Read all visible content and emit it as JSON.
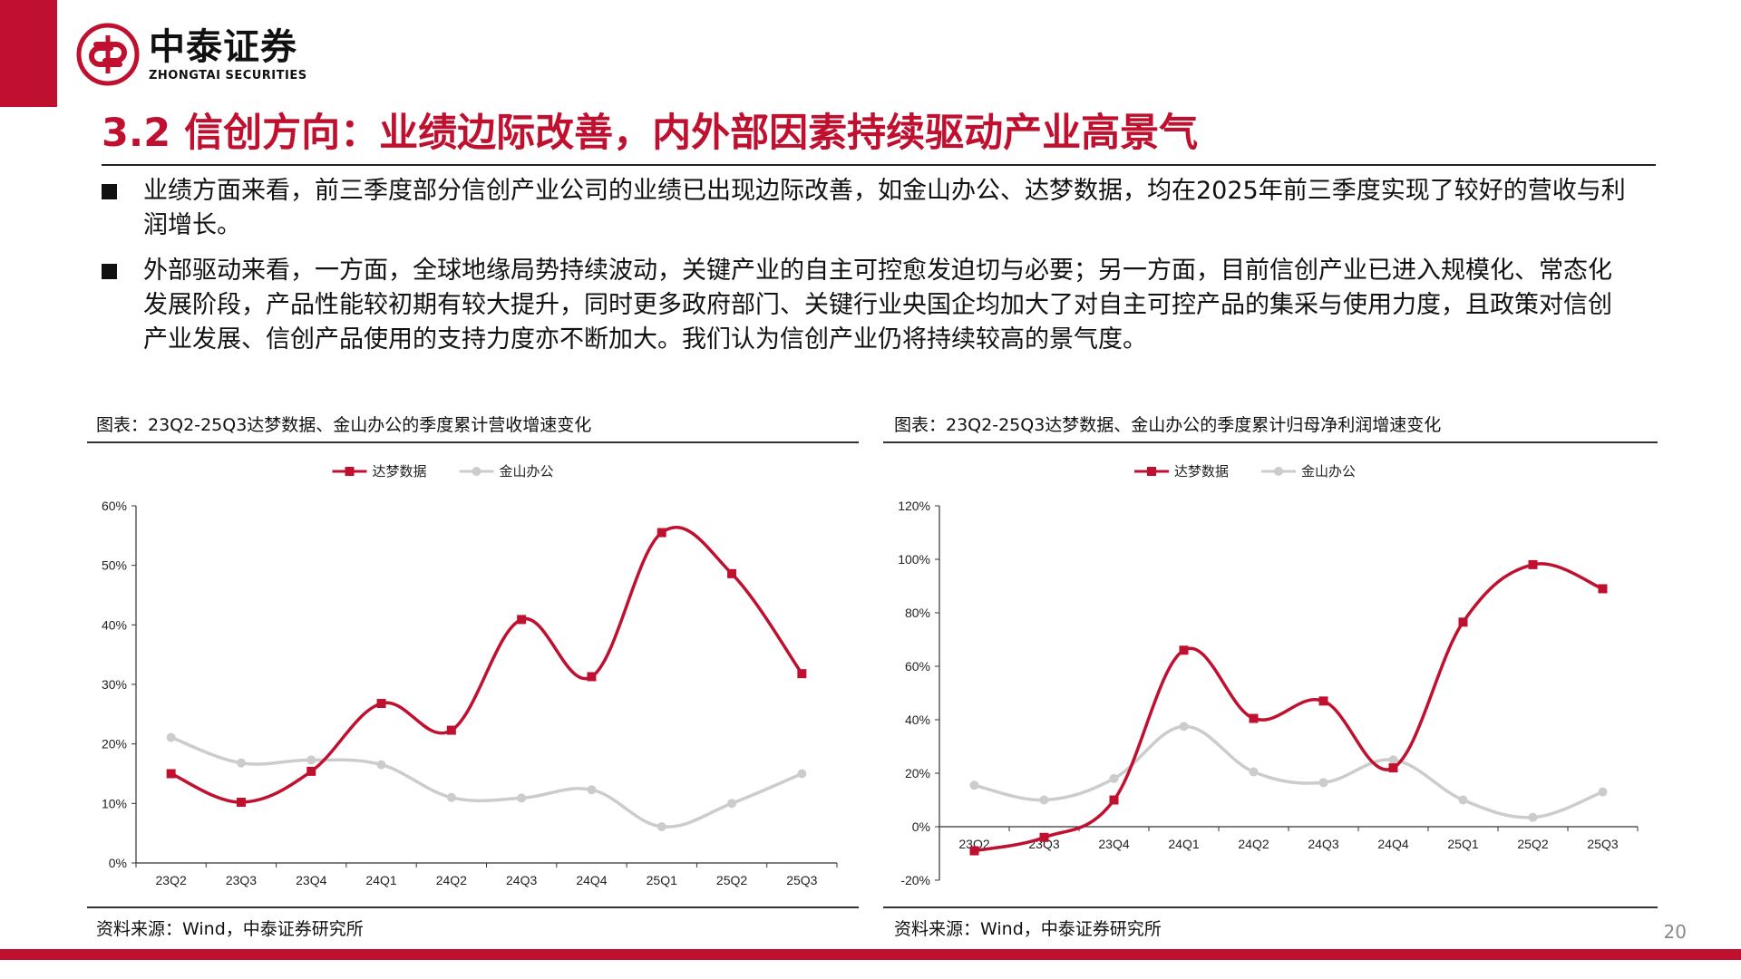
{
  "header": {
    "logo_cn": "中泰证券",
    "logo_en": "ZHONGTAI SECURITIES",
    "accent_color": "#c0102f"
  },
  "title": "3.2 信创方向：业绩边际改善，内外部因素持续驱动产业高景气",
  "bullets": [
    "业绩方面来看，前三季度部分信创产业公司的业绩已出现边际改善，如金山办公、达梦数据，均在2025年前三季度实现了较好的营收与利润增长。",
    "外部驱动来看，一方面，全球地缘局势持续波动，关键产业的自主可控愈发迫切与必要；另一方面，目前信创产业已进入规模化、常态化发展阶段，产品性能较初期有较大提升，同时更多政府部门、关键行业央国企均加大了对自主可控产品的集采与使用力度，且政策对信创产业发展、信创产品使用的支持力度亦不断加大。我们认为信创产业仍将持续较高的景气度。"
  ],
  "figures": [
    {
      "caption": "图表：23Q2-25Q3达梦数据、金山办公的季度累计营收增速变化",
      "source": "资料来源：Wind，中泰证券研究所"
    },
    {
      "caption": "图表：23Q2-25Q3达梦数据、金山办公的季度累计归母净利润增速变化",
      "source": "资料来源：Wind，中泰证券研究所"
    }
  ],
  "page_number": "20",
  "chart_data": [
    {
      "type": "line",
      "categories": [
        "23Q2",
        "23Q3",
        "23Q4",
        "24Q1",
        "24Q2",
        "24Q3",
        "24Q4",
        "25Q1",
        "25Q2",
        "25Q3"
      ],
      "series": [
        {
          "name": "达梦数据",
          "color": "#c0102f",
          "marker": "square",
          "values": [
            15.0,
            10.2,
            15.4,
            26.8,
            22.3,
            40.9,
            31.3,
            55.5,
            48.6,
            31.8
          ]
        },
        {
          "name": "金山办公",
          "color": "#cccccc",
          "marker": "circle",
          "values": [
            21.1,
            16.8,
            17.3,
            16.5,
            11.0,
            10.9,
            12.3,
            6.1,
            10.0,
            15.0
          ]
        }
      ],
      "ylim": [
        0,
        60
      ],
      "yticks": [
        0,
        10,
        20,
        30,
        40,
        50,
        60
      ],
      "yformat": "percent",
      "legend": "top-center",
      "grid": false
    },
    {
      "type": "line",
      "categories": [
        "23Q2",
        "23Q3",
        "23Q4",
        "24Q1",
        "24Q2",
        "24Q3",
        "24Q4",
        "25Q1",
        "25Q2",
        "25Q3"
      ],
      "series": [
        {
          "name": "达梦数据",
          "color": "#c0102f",
          "marker": "square",
          "values": [
            -9.0,
            -4.0,
            10.0,
            66.0,
            40.5,
            47.0,
            22.0,
            76.5,
            98.0,
            89.0
          ]
        },
        {
          "name": "金山办公",
          "color": "#cccccc",
          "marker": "circle",
          "values": [
            15.5,
            10.0,
            18.0,
            37.5,
            20.5,
            16.5,
            25.0,
            10.0,
            3.5,
            13.0
          ]
        }
      ],
      "ylim": [
        -20,
        120
      ],
      "yticks": [
        -20,
        0,
        20,
        40,
        60,
        80,
        100,
        120
      ],
      "yformat": "percent",
      "legend": "top-center",
      "grid": false
    }
  ]
}
